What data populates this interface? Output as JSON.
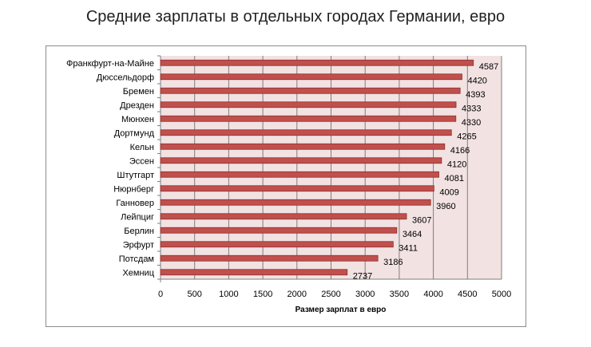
{
  "chart_data": {
    "type": "bar",
    "orientation": "horizontal",
    "title": "Средние зарплаты в отдельных городах Германии, евро",
    "xlabel": "Размер зарплат в евро",
    "ylabel": "",
    "categories": [
      "Франкфурт-на-Майне",
      "Дюссельдорф",
      "Бремен",
      "Дрезден",
      "Мюнхен",
      "Дортмунд",
      "Кельн",
      "Эссен",
      "Штутгарт",
      "Нюрнберг",
      "Ганновер",
      "Лейпциг",
      "Берлин",
      "Эрфурт",
      "Потсдам",
      "Хемниц"
    ],
    "values": [
      4587,
      4420,
      4393,
      4333,
      4330,
      4265,
      4166,
      4120,
      4081,
      4009,
      3960,
      3607,
      3464,
      3411,
      3186,
      2737
    ],
    "xlim": [
      0,
      5000
    ],
    "x_ticks": [
      "0",
      "500",
      "1000",
      "1500",
      "2000",
      "2500",
      "3000",
      "3500",
      "4000",
      "4500",
      "5000"
    ],
    "grid": "vertical gridlines",
    "legend": "none",
    "colors": {
      "bar_fill": "#c0504d",
      "bar_stroke": "#8c2f2c",
      "plot_background": "#f2e2e2",
      "gridline": "#7f7f7f"
    }
  }
}
